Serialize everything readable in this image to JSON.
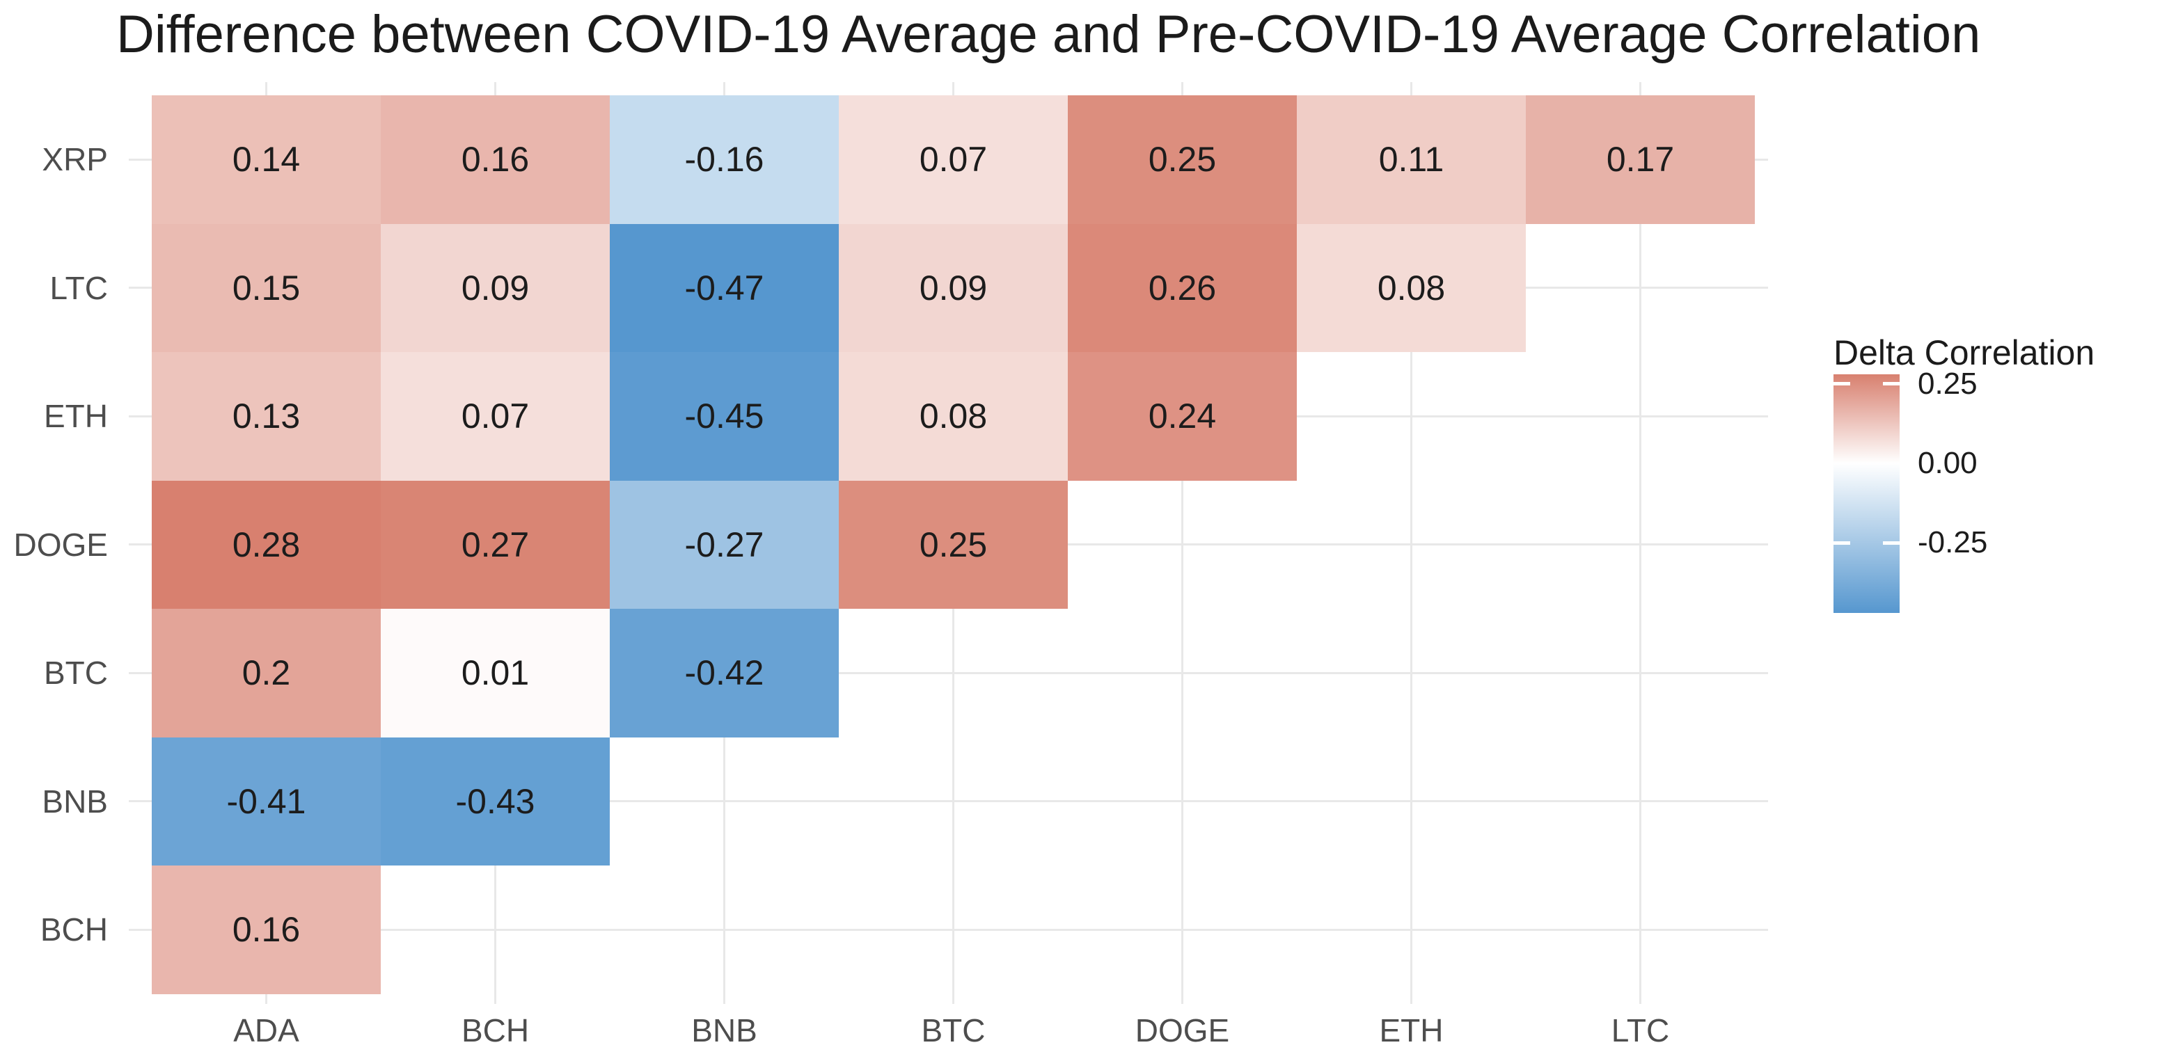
{
  "title": "Difference between COVID-19 Average and Pre-COVID-19 Average Correlation",
  "legend": {
    "title": "Delta Correlation",
    "ticks": [
      {
        "label": "0.25",
        "value": 0.25
      },
      {
        "label": "0.00",
        "value": 0.0
      },
      {
        "label": "-0.25",
        "value": -0.25
      }
    ]
  },
  "color_scale": {
    "low": "#5697CF",
    "mid": "#FFFFFF",
    "high": "#D8806F",
    "domain_min": -0.47,
    "domain_max": 0.28
  },
  "chart_data": {
    "type": "heatmap",
    "x_categories": [
      "ADA",
      "BCH",
      "BNB",
      "BTC",
      "DOGE",
      "ETH",
      "LTC"
    ],
    "y_categories": [
      "XRP",
      "LTC",
      "ETH",
      "DOGE",
      "BTC",
      "BNB",
      "BCH"
    ],
    "values": [
      [
        "0.14",
        "0.16",
        "-0.16",
        "0.07",
        "0.25",
        "0.11",
        "0.17"
      ],
      [
        "0.15",
        "0.09",
        "-0.47",
        "0.09",
        "0.26",
        "0.08",
        null
      ],
      [
        "0.13",
        "0.07",
        "-0.45",
        "0.08",
        "0.24",
        null,
        null
      ],
      [
        "0.28",
        "0.27",
        "-0.27",
        "0.25",
        null,
        null,
        null
      ],
      [
        "0.2",
        "0.01",
        "-0.42",
        null,
        null,
        null,
        null
      ],
      [
        "-0.41",
        "-0.43",
        null,
        null,
        null,
        null,
        null
      ],
      [
        "0.16",
        null,
        null,
        null,
        null,
        null,
        null
      ]
    ],
    "grid": true,
    "legend_position": "right"
  }
}
